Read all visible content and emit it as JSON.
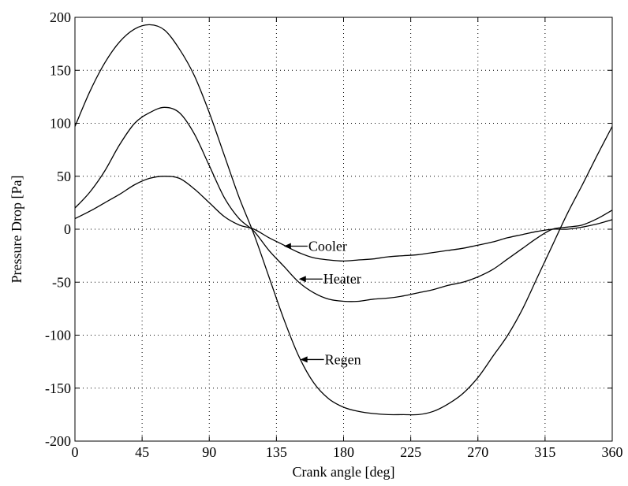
{
  "chart_data": {
    "type": "line",
    "title": "",
    "xlabel": "Crank angle [deg]",
    "ylabel": "Pressure Drop [Pa]",
    "xlim": [
      0,
      360
    ],
    "ylim": [
      -200,
      200
    ],
    "xticks": [
      0,
      45,
      90,
      135,
      180,
      225,
      270,
      315,
      360
    ],
    "yticks": [
      200,
      150,
      100,
      50,
      0,
      -50,
      -100,
      -150,
      -200
    ],
    "grid": true,
    "grid_style": "dotted",
    "legend": "none",
    "line_color": "#000000",
    "series": [
      {
        "name": "Regen",
        "x": [
          0,
          10,
          20,
          30,
          40,
          50,
          60,
          70,
          80,
          90,
          100,
          110,
          120,
          130,
          140,
          150,
          160,
          170,
          180,
          190,
          200,
          210,
          220,
          230,
          240,
          250,
          260,
          270,
          280,
          290,
          300,
          310,
          320,
          330,
          340,
          350,
          360
        ],
        "y": [
          97,
          130,
          157,
          177,
          189,
          193,
          188,
          170,
          145,
          110,
          70,
          30,
          -5,
          -45,
          -85,
          -120,
          -145,
          -160,
          -168,
          -172,
          -174,
          -175,
          -175,
          -175,
          -172,
          -165,
          -155,
          -140,
          -120,
          -100,
          -75,
          -45,
          -15,
          15,
          42,
          70,
          97
        ]
      },
      {
        "name": "Heater",
        "x": [
          0,
          10,
          20,
          30,
          40,
          50,
          60,
          70,
          80,
          90,
          100,
          110,
          120,
          130,
          140,
          150,
          160,
          170,
          180,
          190,
          200,
          210,
          220,
          230,
          240,
          250,
          260,
          270,
          280,
          290,
          300,
          310,
          320,
          330,
          340,
          350,
          360
        ],
        "y": [
          20,
          35,
          55,
          80,
          100,
          110,
          115,
          110,
          90,
          60,
          30,
          10,
          -2,
          -20,
          -35,
          -50,
          -60,
          -66,
          -68,
          -68,
          -66,
          -65,
          -63,
          -60,
          -57,
          -53,
          -50,
          -45,
          -38,
          -28,
          -18,
          -8,
          0,
          2,
          4,
          10,
          18
        ]
      },
      {
        "name": "Cooler",
        "x": [
          0,
          10,
          20,
          30,
          40,
          50,
          60,
          70,
          80,
          90,
          100,
          110,
          120,
          130,
          140,
          150,
          160,
          170,
          180,
          190,
          200,
          210,
          220,
          230,
          240,
          250,
          260,
          270,
          280,
          290,
          300,
          310,
          320,
          330,
          340,
          350,
          360
        ],
        "y": [
          10,
          17,
          25,
          33,
          42,
          48,
          50,
          48,
          38,
          25,
          12,
          4,
          0,
          -8,
          -15,
          -22,
          -27,
          -29,
          -30,
          -29,
          -28,
          -26,
          -25,
          -24,
          -22,
          -20,
          -18,
          -15,
          -12,
          -8,
          -5,
          -2,
          0,
          0,
          2,
          5,
          9
        ]
      }
    ],
    "annotations": [
      {
        "text": "Cooler",
        "arrow_to_x": 140,
        "arrow_to_y": -16
      },
      {
        "text": "Heater",
        "arrow_to_x": 150,
        "arrow_to_y": -47
      },
      {
        "text": "Regen",
        "arrow_to_x": 151,
        "arrow_to_y": -123
      }
    ]
  }
}
